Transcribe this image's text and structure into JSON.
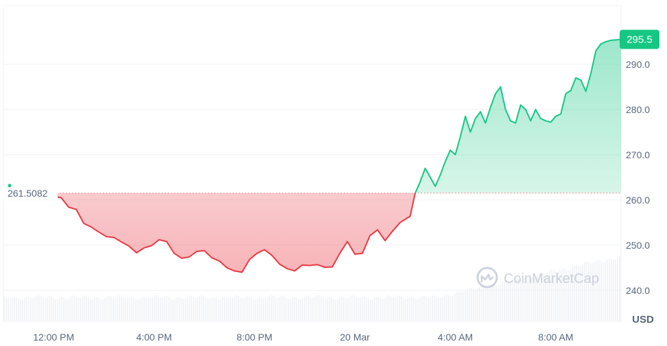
{
  "chart_data": {
    "type": "area",
    "baseline": 261.5082,
    "baseline_label": "261.5082",
    "current_price": 295.5,
    "current_price_label": "295.5",
    "currency_label": "USD",
    "ylim": [
      233,
      303
    ],
    "yticks": [
      {
        "value": 290,
        "label": "290.0"
      },
      {
        "value": 280,
        "label": "280.0"
      },
      {
        "value": 270,
        "label": "270.0"
      },
      {
        "value": 260,
        "label": "260.0"
      },
      {
        "value": 250,
        "label": "250.0"
      },
      {
        "value": 240,
        "label": "240.0"
      }
    ],
    "xlim": [
      10.0,
      34.6
    ],
    "xticks": [
      {
        "value": 12,
        "label": "12:00 PM"
      },
      {
        "value": 16,
        "label": "4:00 PM"
      },
      {
        "value": 20,
        "label": "8:00 PM"
      },
      {
        "value": 24,
        "label": "20 Mar"
      },
      {
        "value": 28,
        "label": "4:00 AM"
      },
      {
        "value": 32,
        "label": "8:00 AM"
      }
    ],
    "x_unit": "hour (19 Mar 00:00 = 0)",
    "series": [
      {
        "x": [
          12.0,
          12.3,
          12.6,
          12.9,
          13.2,
          13.5,
          13.8,
          14.1,
          14.4,
          14.7,
          15.0,
          15.3,
          15.6,
          15.9,
          16.2,
          16.5,
          16.8,
          17.1,
          17.4,
          17.7,
          18.0,
          18.3,
          18.6,
          18.9,
          19.2,
          19.5,
          19.8,
          20.1,
          20.4,
          20.7,
          21.0,
          21.3,
          21.6,
          21.9,
          22.2,
          22.5,
          22.8,
          23.1,
          23.4,
          23.7,
          24.0,
          24.3,
          24.6,
          24.9,
          25.2,
          25.5,
          25.8,
          26.0,
          26.2,
          26.4,
          26.6,
          26.8,
          27.0,
          27.2,
          27.4,
          27.6,
          27.8,
          28.0,
          28.2,
          28.4,
          28.6,
          28.8,
          29.0,
          29.2,
          29.4,
          29.6,
          29.8,
          30.0,
          30.2,
          30.4,
          30.6,
          30.8,
          31.0,
          31.2,
          31.4,
          31.6,
          31.8,
          32.0,
          32.2,
          32.4,
          32.6,
          32.8,
          33.0,
          33.2,
          33.4,
          33.6,
          33.8,
          34.0,
          34.2,
          34.4,
          34.6
        ],
        "y": [
          260.8,
          260.5,
          258.4,
          257.9,
          254.8,
          254.0,
          252.9,
          251.9,
          251.7,
          250.7,
          249.8,
          248.3,
          249.4,
          249.9,
          251.2,
          250.8,
          248.2,
          247.1,
          247.4,
          248.6,
          248.8,
          247.2,
          246.5,
          245.0,
          244.3,
          244.0,
          246.8,
          248.2,
          249.0,
          247.7,
          245.8,
          244.8,
          244.3,
          245.6,
          245.5,
          245.7,
          245.1,
          245.2,
          248.2,
          250.8,
          248.0,
          248.2,
          252.1,
          253.4,
          251.0,
          253.1,
          255.0,
          255.7,
          256.4,
          261.5,
          264.0,
          267.0,
          265.0,
          263.0,
          265.5,
          268.5,
          271.0,
          270.0,
          274.0,
          278.5,
          275.0,
          278.0,
          279.5,
          277.0,
          280.5,
          283.5,
          285.0,
          280.0,
          277.5,
          277.0,
          281.0,
          280.0,
          277.5,
          280.0,
          278.0,
          277.5,
          277.2,
          278.5,
          279.0,
          283.5,
          284.2,
          287.0,
          286.5,
          284.0,
          288.0,
          293.0,
          294.5,
          295.0,
          295.3,
          295.4,
          295.5
        ]
      }
    ],
    "watermark": "CoinMarketCap",
    "colors": {
      "up": "#16c784",
      "down": "#ea3943",
      "grid": "#eff2f5",
      "axis_text": "#58667e",
      "volume": "#e7ebf0"
    },
    "grid": true
  }
}
